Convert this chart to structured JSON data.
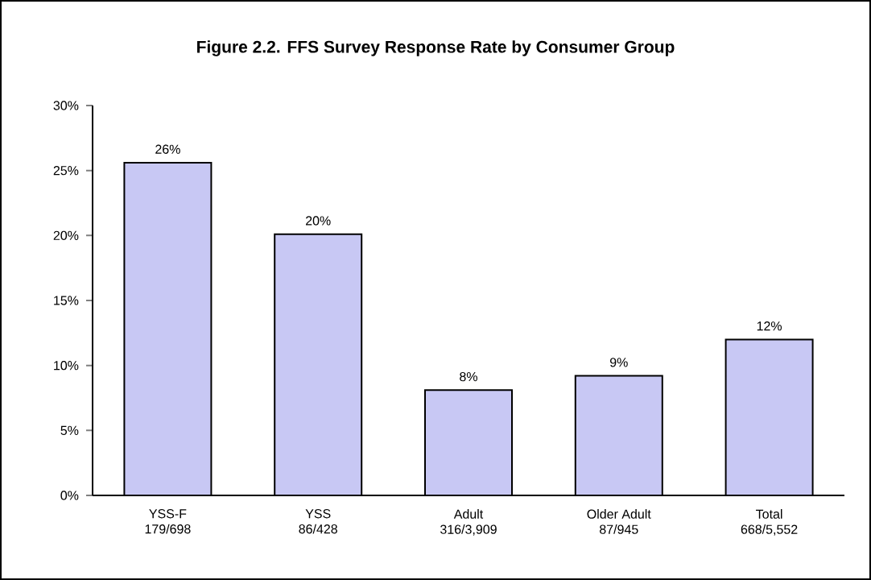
{
  "chart_data": {
    "type": "bar",
    "title": "Figure 2.2.  FFS Survey Response Rate by Consumer Group",
    "categories": [
      "YSS-F\n179/698",
      "YSS\n86/428",
      "Adult\n316/3,909",
      "Older Adult\n87/945",
      "Total\n668/5,552"
    ],
    "values": [
      25.6,
      20.1,
      8.1,
      9.2,
      12.0
    ],
    "value_labels": [
      "26%",
      "20%",
      "8%",
      "9%",
      "12%"
    ],
    "color": "#c8c8f4",
    "ylim": [
      0,
      30
    ],
    "yticks": [
      {
        "value": 0,
        "label": "0%"
      },
      {
        "value": 5,
        "label": "5%"
      },
      {
        "value": 10,
        "label": "10%"
      },
      {
        "value": 15,
        "label": "15%"
      },
      {
        "value": 20,
        "label": "20%"
      },
      {
        "value": 25,
        "label": "25%"
      },
      {
        "value": 30,
        "label": "30%"
      }
    ],
    "grid": false
  }
}
